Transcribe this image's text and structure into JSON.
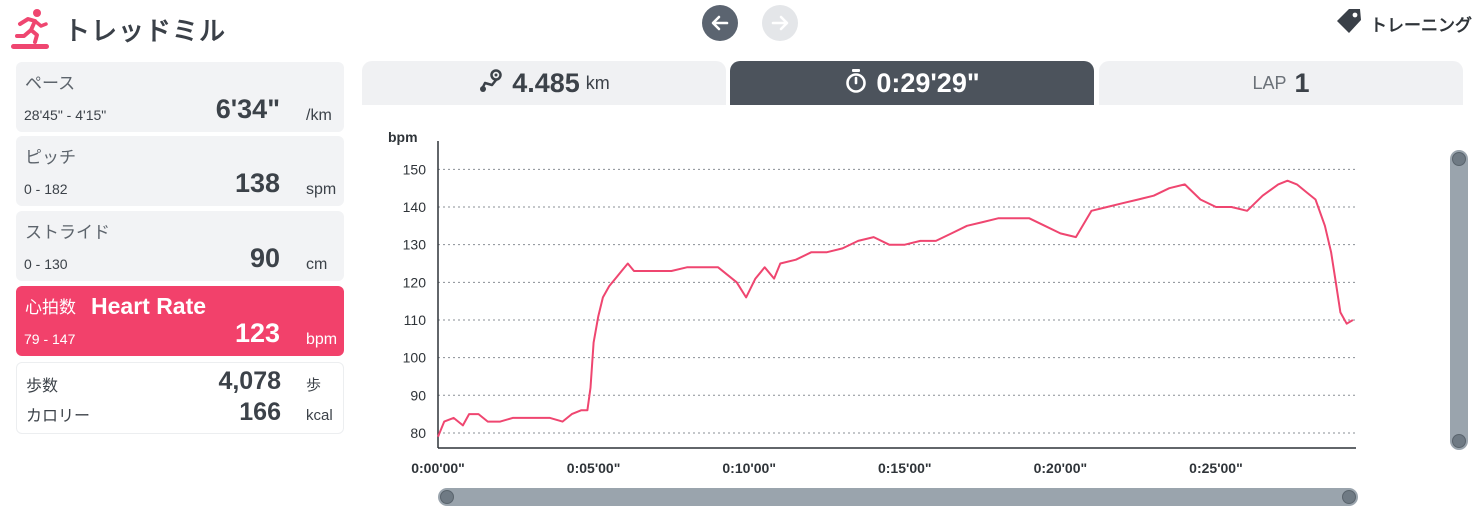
{
  "app": {
    "title": "トレッドミル",
    "icon": "treadmill-runner-icon",
    "training_label": "トレーニング",
    "training_icon": "tag-icon",
    "nav": {
      "prev_icon": "arrow-left-icon",
      "next_icon": "arrow-right-icon"
    }
  },
  "metrics": [
    {
      "label": "ペース",
      "name": "",
      "range": "28'45\" - 4'15\"",
      "value": "6'34\"",
      "unit": "/km",
      "active": false
    },
    {
      "label": "ピッチ",
      "name": "",
      "range": "0 - 182",
      "value": "138",
      "unit": "spm",
      "active": false
    },
    {
      "label": "ストライド",
      "name": "",
      "range": "0 - 130",
      "value": "90",
      "unit": "cm",
      "active": false
    },
    {
      "label": "心拍数",
      "name": "Heart Rate",
      "range": "79 - 147",
      "value": "123",
      "unit": "bpm",
      "active": true
    }
  ],
  "summary": {
    "steps_label": "歩数",
    "steps_value": "4,078",
    "steps_unit": "歩",
    "calories_label": "カロリー",
    "calories_value": "166",
    "calories_unit": "kcal"
  },
  "tabs": {
    "distance": {
      "icon": "route-pin-icon",
      "value": "4.485",
      "unit": "km"
    },
    "time": {
      "icon": "stopwatch-icon",
      "value": "0:29'29\""
    },
    "lap": {
      "label": "LAP",
      "value": "1"
    }
  },
  "colors": {
    "accent": "#f2416b",
    "dark_tab": "#4c535c",
    "scrollbar": "#9aa4ad"
  },
  "chart_data": {
    "type": "line",
    "ylabel": "bpm",
    "ylim": [
      76,
      157
    ],
    "yticks": [
      80,
      90,
      100,
      110,
      120,
      130,
      140,
      150
    ],
    "xlim": [
      0,
      29.5
    ],
    "xticks": [
      {
        "v": 0,
        "label": "0:00'00\""
      },
      {
        "v": 5,
        "label": "0:05'00\""
      },
      {
        "v": 10,
        "label": "0:10'00\""
      },
      {
        "v": 15,
        "label": "0:15'00\""
      },
      {
        "v": 20,
        "label": "0:20'00\""
      },
      {
        "v": 25,
        "label": "0:25'00\""
      }
    ],
    "grid": true,
    "series": [
      {
        "color": "#ef4670",
        "x": [
          0,
          0.2,
          0.5,
          0.8,
          1.0,
          1.3,
          1.6,
          2.0,
          2.4,
          2.8,
          3.2,
          3.6,
          4.0,
          4.3,
          4.6,
          4.8,
          4.9,
          5.0,
          5.15,
          5.3,
          5.5,
          5.7,
          5.9,
          6.1,
          6.3,
          6.5,
          7.0,
          7.5,
          8.0,
          8.5,
          9.0,
          9.3,
          9.6,
          9.9,
          10.2,
          10.5,
          10.8,
          11.0,
          11.5,
          12.0,
          12.5,
          13.0,
          13.5,
          14.0,
          14.5,
          15.0,
          15.5,
          16.0,
          16.5,
          17.0,
          17.5,
          18.0,
          18.5,
          19.0,
          19.5,
          20.0,
          20.5,
          21.0,
          21.5,
          22.0,
          22.5,
          23.0,
          23.5,
          24.0,
          24.5,
          25.0,
          25.5,
          26.0,
          26.5,
          27.0,
          27.3,
          27.6,
          27.9,
          28.2,
          28.5,
          28.7,
          28.85,
          29.0,
          29.2,
          29.4
        ],
        "values": [
          79,
          83,
          84,
          82,
          85,
          85,
          83,
          83,
          84,
          84,
          84,
          84,
          83,
          85,
          86,
          86,
          92,
          104,
          111,
          116,
          119,
          121,
          123,
          125,
          123,
          123,
          123,
          123,
          124,
          124,
          124,
          122,
          120,
          116,
          121,
          124,
          121,
          125,
          126,
          128,
          128,
          129,
          131,
          132,
          130,
          130,
          131,
          131,
          133,
          135,
          136,
          137,
          137,
          137,
          135,
          133,
          132,
          139,
          140,
          141,
          142,
          143,
          145,
          146,
          142,
          140,
          140,
          139,
          143,
          146,
          147,
          146,
          144,
          142,
          135,
          128,
          120,
          112,
          109,
          110
        ]
      }
    ]
  }
}
